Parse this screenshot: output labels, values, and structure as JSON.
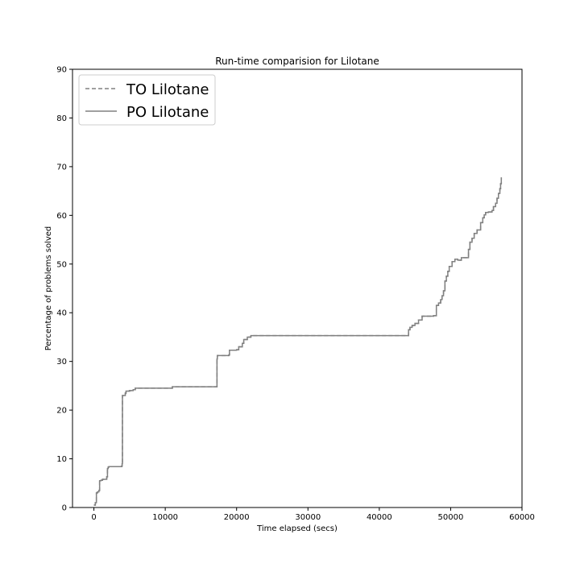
{
  "chart_data": {
    "type": "line",
    "title": "Run-time comparision for Lilotane",
    "xlabel": "Time elapsed (secs)",
    "ylabel": "Percentage of problems solved",
    "xlim": [
      -3000,
      60000
    ],
    "ylim": [
      0,
      90
    ],
    "xticks": [
      0,
      10000,
      20000,
      30000,
      40000,
      50000,
      60000
    ],
    "yticks": [
      0,
      10,
      20,
      30,
      40,
      50,
      60,
      70,
      80,
      90
    ],
    "grid": false,
    "legend_position": "top-left",
    "colors": {
      "series": "#808080",
      "axis": "#000000",
      "background": "#ffffff"
    },
    "series": [
      {
        "name": "TO Lilotane",
        "style": "dashed",
        "x": [
          0,
          200,
          350,
          500,
          700,
          800,
          1000,
          1200,
          1800,
          1900,
          2000,
          2100,
          3900,
          3950,
          4000,
          4400,
          4500,
          5000,
          5500,
          5800,
          10800,
          11000,
          17200,
          17250,
          17300,
          18900,
          19000,
          20000,
          20300,
          20800,
          21000,
          21500,
          22000,
          43900,
          44100,
          44300,
          44600,
          45000,
          45500,
          46000,
          47600,
          48000,
          48300,
          48600,
          48800,
          49000,
          49200,
          49400,
          49600,
          49800,
          50200,
          50600,
          51000,
          51500,
          52500,
          52700,
          53000,
          53300,
          53700,
          54200,
          54500,
          54700,
          54900,
          55300,
          55800,
          56000,
          56300,
          56500,
          56700,
          56900,
          57000,
          57100
        ],
        "y": [
          0.5,
          1,
          3,
          3.2,
          3.5,
          5.5,
          5.6,
          5.8,
          6.3,
          8,
          8.3,
          8.4,
          8.5,
          9,
          23,
          23.5,
          23.9,
          24,
          24.2,
          24.5,
          24.5,
          24.8,
          24.8,
          30.5,
          31.2,
          31.3,
          32.3,
          32.4,
          33,
          33.7,
          34.5,
          35,
          35.3,
          35.3,
          36.5,
          37,
          37.4,
          37.8,
          38.5,
          39.3,
          39.4,
          41.5,
          42,
          42.7,
          43.5,
          44.5,
          46.5,
          47.5,
          48.5,
          49.5,
          50.5,
          51,
          50.8,
          51.3,
          53,
          54.5,
          55.3,
          56.3,
          57,
          58.5,
          59.5,
          60.1,
          60.6,
          60.7,
          61,
          61.8,
          62.5,
          63.5,
          64.5,
          65.5,
          66.5,
          67.8
        ]
      },
      {
        "name": "PO Lilotane",
        "style": "solid",
        "x": [
          0,
          200,
          350,
          500,
          700,
          800,
          1000,
          1200,
          1800,
          1900,
          2000,
          2100,
          3900,
          3950,
          4000,
          4400,
          4500,
          5000,
          5500,
          5800,
          10800,
          11000,
          17200,
          17250,
          17300,
          18900,
          19000,
          20000,
          20300,
          20800,
          21000,
          21500,
          22000,
          43900,
          44100,
          44300,
          44600,
          45000,
          45500,
          46000,
          47600,
          48000,
          48300,
          48600,
          48800,
          49000,
          49200,
          49400,
          49600,
          49800,
          50200,
          50600,
          51000,
          51500,
          52500,
          52700,
          53000,
          53300,
          53700,
          54200,
          54500,
          54700,
          54900,
          55300,
          55800,
          56000,
          56300,
          56500,
          56700,
          56900,
          57000,
          57100
        ],
        "y": [
          0.5,
          1,
          3,
          3.2,
          3.5,
          5.5,
          5.6,
          5.8,
          6.3,
          8,
          8.3,
          8.4,
          8.5,
          9,
          23,
          23.5,
          23.9,
          24,
          24.2,
          24.5,
          24.5,
          24.8,
          24.8,
          30.5,
          31.2,
          31.3,
          32.3,
          32.4,
          33,
          33.7,
          34.5,
          35,
          35.3,
          35.3,
          36.5,
          37,
          37.4,
          37.8,
          38.5,
          39.3,
          39.4,
          41.5,
          42,
          42.7,
          43.5,
          44.5,
          46.5,
          47.5,
          48.5,
          49.5,
          50.5,
          51,
          50.8,
          51.3,
          53,
          54.5,
          55.3,
          56.3,
          57,
          58.5,
          59.5,
          60.1,
          60.6,
          60.7,
          61,
          61.8,
          62.5,
          63.5,
          64.5,
          65.5,
          66.5,
          67.8
        ]
      }
    ]
  }
}
